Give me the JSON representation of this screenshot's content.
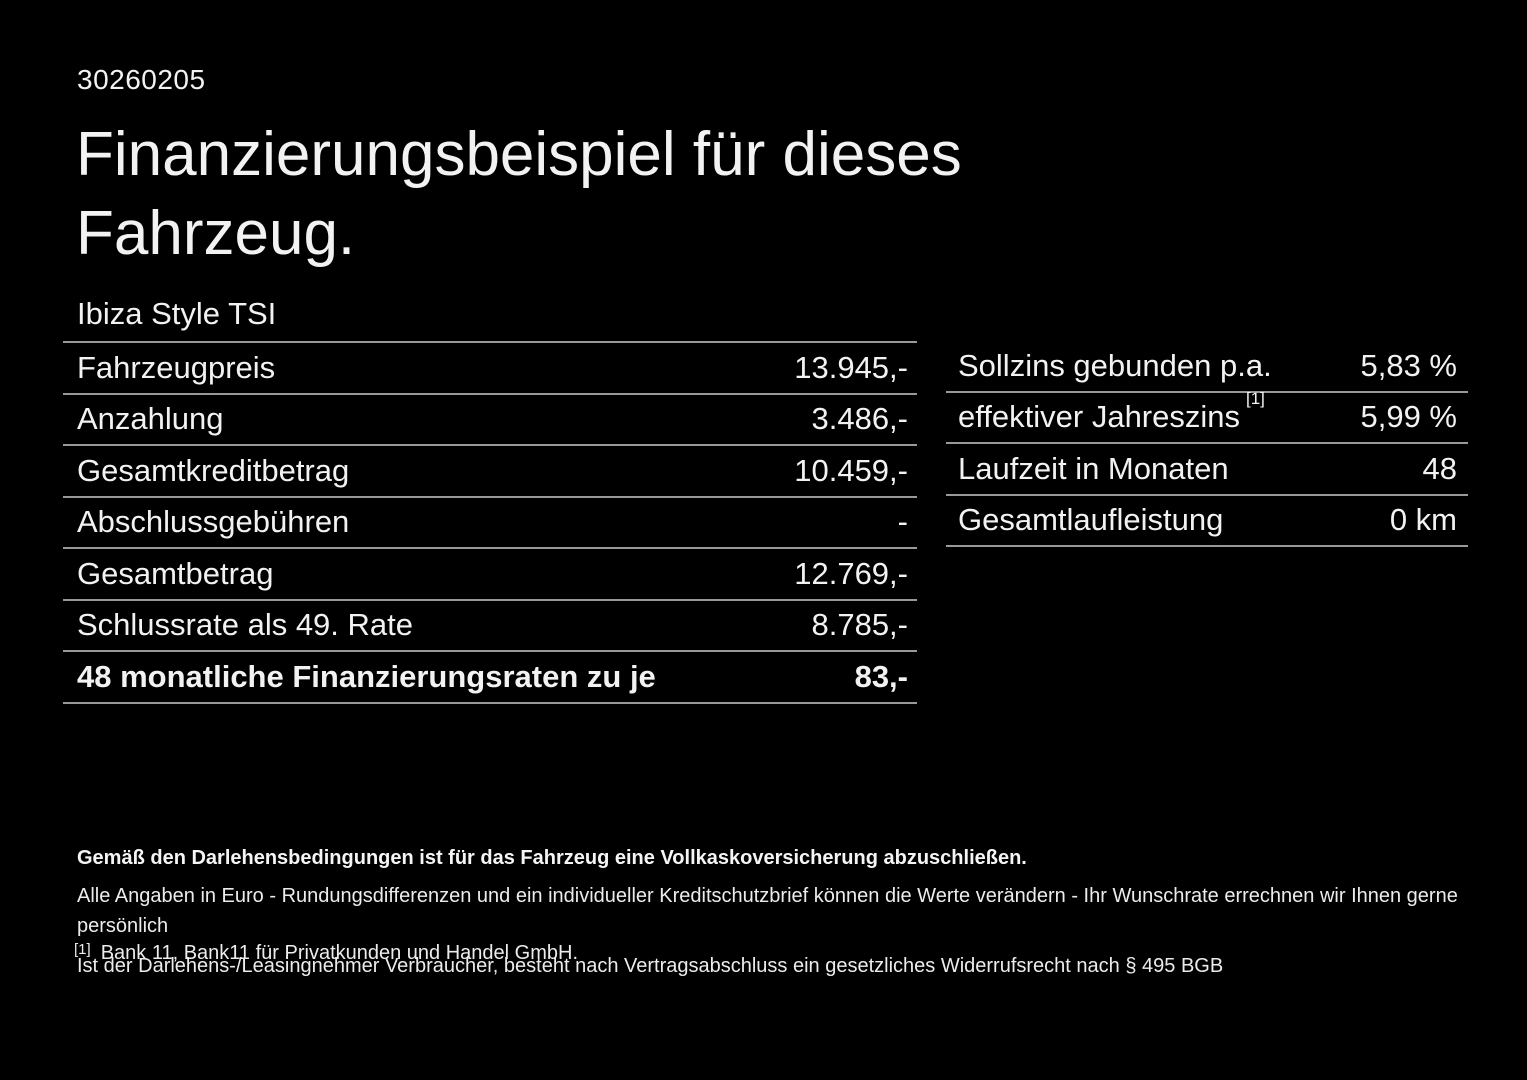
{
  "page": {
    "doc_number": "30260205",
    "title_line1": "Finanzierungsbeispiel für dieses",
    "title_line2": "Fahrzeug.",
    "vehicle_model": "Ibiza Style TSI"
  },
  "finance_table": {
    "rows": [
      {
        "label": "Fahrzeugpreis",
        "value": "13.945,-"
      },
      {
        "label": "Anzahlung",
        "value": "3.486,-"
      },
      {
        "label": "Gesamtkreditbetrag",
        "value": "10.459,-"
      },
      {
        "label": "Abschlussgebühren",
        "value": "-"
      },
      {
        "label": "Gesamtbetrag",
        "value": "12.769,-"
      },
      {
        "label": "Schlussrate als 49. Rate",
        "value": "8.785,-"
      },
      {
        "label": "48 monatliche Finanzierungsraten zu je",
        "value": "83,-"
      }
    ]
  },
  "conditions_table": {
    "rows": [
      {
        "label": "Sollzins gebunden p.a.",
        "value": "5,83 %"
      },
      {
        "label": "effektiver Jahreszins",
        "sup": "[1]",
        "value": "5,99 %"
      },
      {
        "label": "Laufzeit in Monaten",
        "value": "48"
      },
      {
        "label": "Gesamtlaufleistung",
        "value": "0 km"
      }
    ]
  },
  "footer": {
    "line1": "Gemäß den Darlehensbedingungen ist für das Fahrzeug eine Vollkaskoversicherung abzuschließen.",
    "line2": "Alle Angaben in Euro - Rundungsdifferenzen und ein individueller Kreditschutzbrief können die Werte verändern - Ihr Wunschrate errechnen wir Ihnen gerne persönlich",
    "line3": "Ist der Darlehens-/Leasingnehmer Verbraucher, besteht nach Vertragsabschluss ein gesetzliches Widerrufsrecht nach § 495 BGB",
    "footnote_marker": "[1]",
    "footnote_text": "Bank 11, Bank11 für Privatkunden und Handel GmbH."
  },
  "colors": {
    "background": "#000000",
    "text": "#f2f2f2",
    "divider": "#999999"
  }
}
